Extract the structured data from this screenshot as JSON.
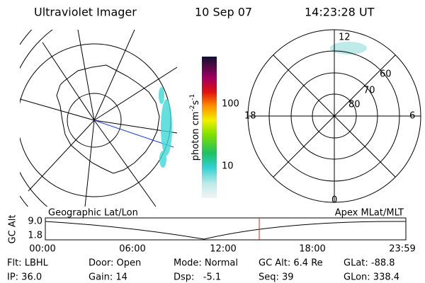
{
  "header": {
    "title": "Ultraviolet Imager",
    "date": "10 Sep 07",
    "time": "14:23:28 UT"
  },
  "colorbar": {
    "label": [
      "photon cm",
      "-2",
      "s",
      "-1"
    ],
    "ticks": [
      "100",
      "10"
    ]
  },
  "polar": {
    "hours": [
      "12",
      "18",
      "6",
      "0"
    ],
    "latitudes": [
      "60",
      "70",
      "80"
    ]
  },
  "timeline": {
    "left_label": "Geographic Lat/Lon",
    "right_label": "Apex MLat/MLT",
    "axis_label": "GC Alt",
    "yticks": [
      "9.0",
      "1.8"
    ],
    "xticks": [
      "00:00",
      "06:00",
      "12:00",
      "18:00",
      "23:59"
    ]
  },
  "footer": {
    "rows": [
      [
        "Flt: LBHL",
        "Door: Open",
        "Mode: Normal",
        "GC Alt: 6.4 Re",
        "GLat: -88.8"
      ],
      [
        "IP: 36.0",
        "Gain: 14",
        "Dsp:   -5.1",
        "Seq: 39",
        "GLon: 338.4"
      ]
    ]
  }
}
